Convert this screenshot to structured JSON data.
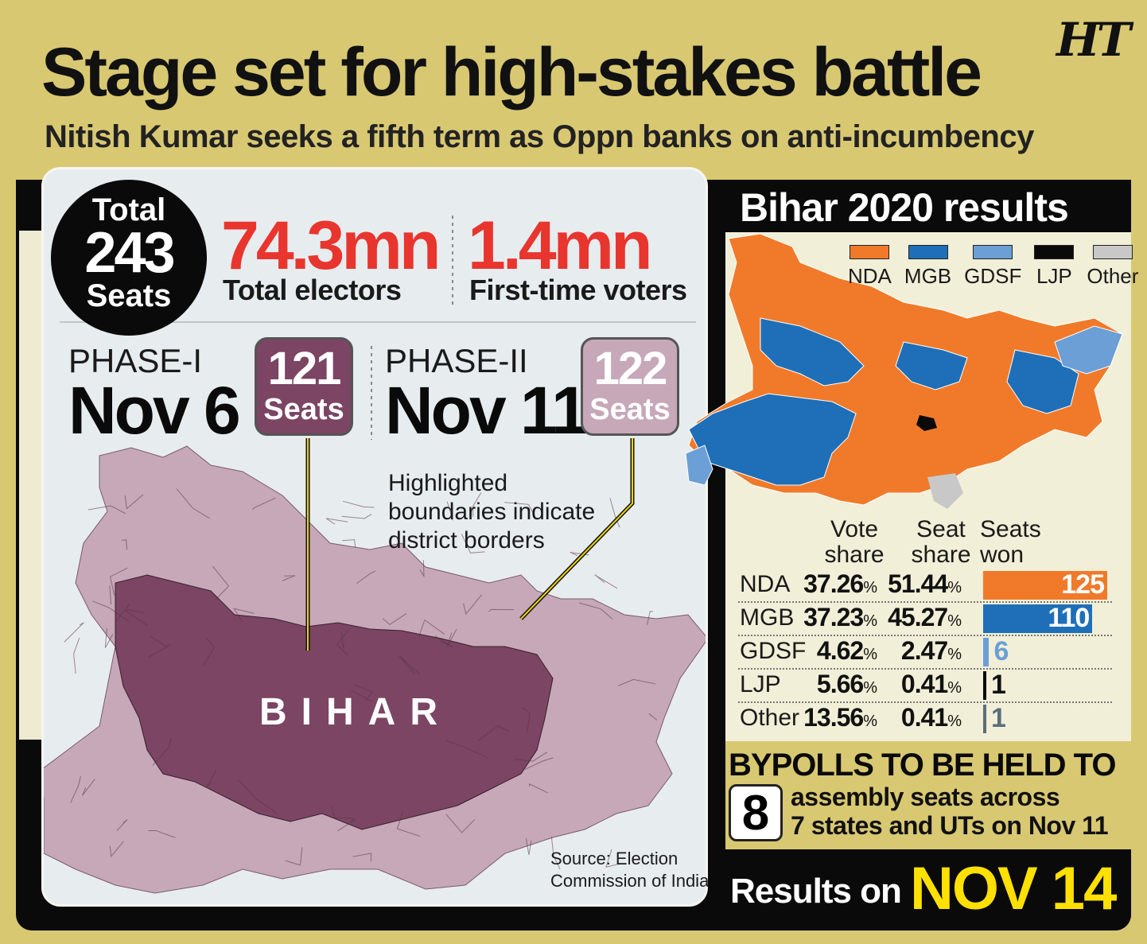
{
  "header": {
    "title": "Stage set for high-stakes battle",
    "subtitle": "Nitish Kumar seeks a fifth term as Oppn banks on anti-incumbency",
    "logo": "HT"
  },
  "totals": {
    "total_top": "Total",
    "total_seats": "243",
    "total_bottom": "Seats",
    "electors_value": "74.3mn",
    "electors_label": "Total electors",
    "first_time_value": "1.4mn",
    "first_time_label": "First-time voters"
  },
  "phases": [
    {
      "label": "PHASE-I",
      "date": "Nov 6",
      "seats": "121",
      "seats_label": "Seats",
      "color": "#7b4563"
    },
    {
      "label": "PHASE-II",
      "date": "Nov 11",
      "seats": "122",
      "seats_label": "Seats",
      "color": "#c6a8b8"
    }
  ],
  "map": {
    "state_label": "BIHAR",
    "note": "Highlighted boundaries indicate district borders",
    "source": "Source: Election Commission of India",
    "phase1_color": "#7b4563",
    "phase2_color": "#c6a8b8"
  },
  "results_2020": {
    "title": "Bihar 2020 results",
    "legend": [
      {
        "name": "NDA",
        "color": "#f07a2a"
      },
      {
        "name": "MGB",
        "color": "#1f6fb8"
      },
      {
        "name": "GDSF",
        "color": "#6b9fd6"
      },
      {
        "name": "LJP",
        "color": "#0a0a0a"
      },
      {
        "name": "Other",
        "color": "#c8c8c8"
      }
    ],
    "columns": {
      "vote_share_1": "Vote",
      "vote_share_2": "share",
      "seat_share_1": "Seat",
      "seat_share_2": "share",
      "seats_won_1": "Seats",
      "seats_won_2": "won"
    },
    "percent_symbol": "%",
    "rows": [
      {
        "party": "NDA",
        "vote_share": "37.26",
        "seat_share": "51.44",
        "seats_won": 125,
        "seats_label": "125",
        "color": "#f07a2a"
      },
      {
        "party": "MGB",
        "vote_share": "37.23",
        "seat_share": "45.27",
        "seats_won": 110,
        "seats_label": "110",
        "color": "#1f6fb8"
      },
      {
        "party": "GDSF",
        "vote_share": "4.62",
        "seat_share": "2.47",
        "seats_won": 6,
        "seats_label": "6",
        "color": "#6b9fd6"
      },
      {
        "party": "LJP",
        "vote_share": "5.66",
        "seat_share": "0.41",
        "seats_won": 1,
        "seats_label": "1",
        "color": "#0a0a0a"
      },
      {
        "party": "Other",
        "vote_share": "13.56",
        "seat_share": "0.41",
        "seats_won": 1,
        "seats_label": "1",
        "color": "#5a6e7a"
      }
    ]
  },
  "bypolls": {
    "title": "BYPOLLS TO BE HELD TO",
    "count": "8",
    "line1": "assembly seats across",
    "line2": "7 states and UTs on Nov 11"
  },
  "results_day": {
    "label": "Results on",
    "date": "NOV 14"
  }
}
